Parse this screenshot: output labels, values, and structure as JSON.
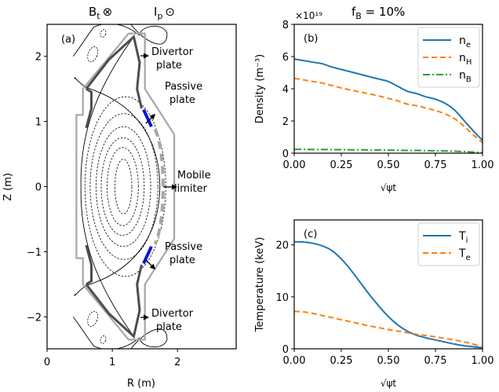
{
  "header": {
    "bt_label": "B",
    "bt_sub": "t",
    "bt_symbol": "⊗",
    "ip_label": "I",
    "ip_sub": "p",
    "ip_symbol": "⊙",
    "fb_label": "f",
    "fb_sub": "B",
    "fb_value": " = 10%"
  },
  "chart_data": [
    {
      "type": "diagram",
      "panel": "(a)",
      "title": "Tokamak poloidal cross-section",
      "xlabel": "R (m)",
      "ylabel": "Z (m)",
      "xlim": [
        0,
        2.9
      ],
      "ylim": [
        -2.49,
        2.49
      ],
      "xticks": [
        0,
        1,
        2
      ],
      "yticks": [
        2,
        1,
        0,
        -1,
        -2
      ],
      "annotations": [
        {
          "text": "Divertor\nplate",
          "lines": [
            "Divertor",
            "plate"
          ],
          "position": "upper"
        },
        {
          "text": "Passive\nplate",
          "lines": [
            "Passive",
            "plate"
          ],
          "position": "upper"
        },
        {
          "text": "Mobile\nlimiter",
          "lines": [
            "Mobile",
            "limiter"
          ],
          "position": "middle"
        },
        {
          "text": "Passive\nplate",
          "lines": [
            "Passive",
            "plate"
          ],
          "position": "lower"
        },
        {
          "text": "Divertor\nplate",
          "lines": [
            "Divertor",
            "plate"
          ],
          "position": "lower"
        }
      ],
      "colors": {
        "wall": "#a6a6a6",
        "divertor": "#4d4d4d",
        "passive": "#0a14d8",
        "limiter": "#a6a6a6",
        "flux": "#000000"
      },
      "wall_outline": [
        [
          1.25,
          2.35
        ],
        [
          1.5,
          2.35
        ],
        [
          1.5,
          1.5
        ],
        [
          1.95,
          0.8
        ],
        [
          1.95,
          -0.8
        ],
        [
          1.5,
          -1.5
        ],
        [
          1.5,
          -2.35
        ],
        [
          1.25,
          -2.35
        ],
        [
          0.55,
          -1.5
        ],
        [
          0.55,
          -1.1
        ],
        [
          0.45,
          -1.1
        ],
        [
          0.45,
          1.1
        ],
        [
          0.55,
          1.1
        ],
        [
          0.55,
          1.5
        ],
        [
          1.25,
          2.35
        ]
      ],
      "divertor_upper": [
        [
          0.6,
          0.9
        ],
        [
          0.68,
          1.2
        ],
        [
          0.68,
          1.45
        ],
        [
          0.6,
          1.5
        ],
        [
          0.95,
          1.95
        ],
        [
          1.33,
          2.3
        ],
        [
          1.42,
          1.9
        ],
        [
          1.38,
          1.5
        ],
        [
          1.45,
          1.2
        ]
      ],
      "divertor_lower": [
        [
          0.6,
          -0.9
        ],
        [
          0.68,
          -1.2
        ],
        [
          0.68,
          -1.45
        ],
        [
          0.6,
          -1.5
        ],
        [
          0.95,
          -1.95
        ],
        [
          1.33,
          -2.3
        ],
        [
          1.42,
          -1.9
        ],
        [
          1.38,
          -1.5
        ],
        [
          1.45,
          -1.2
        ]
      ],
      "passive_upper": [
        [
          1.48,
          1.18
        ],
        [
          1.6,
          0.92
        ]
      ],
      "passive_lower": [
        [
          1.48,
          -1.18
        ],
        [
          1.6,
          -0.92
        ]
      ],
      "limiter_arc": {
        "center_r": 1.22,
        "half_height": 0.82,
        "width_r": 0.52
      },
      "flux_contours": [
        {
          "r0": 1.2,
          "rx": 0.62,
          "zh": 1.38
        },
        {
          "r0": 1.18,
          "rx": 0.52,
          "zh": 1.12
        },
        {
          "r0": 1.17,
          "rx": 0.42,
          "zh": 0.92
        },
        {
          "r0": 1.16,
          "rx": 0.33,
          "zh": 0.75
        },
        {
          "r0": 1.16,
          "rx": 0.24,
          "zh": 0.6
        },
        {
          "r0": 1.17,
          "rx": 0.13,
          "zh": 0.42
        }
      ]
    },
    {
      "type": "line",
      "panel": "(b)",
      "title": "",
      "xlabel": "√ψt",
      "ylabel": "Density (m⁻³)",
      "offset_text": "×10¹⁹",
      "xlim": [
        0,
        1
      ],
      "ylim": [
        0,
        8
      ],
      "xticks": [
        0,
        0.25,
        0.5,
        0.75,
        1.0
      ],
      "xtick_labels": [
        "0.00",
        "0.25",
        "0.50",
        "0.75",
        "1.00"
      ],
      "yticks": [
        0,
        2,
        4,
        6,
        8
      ],
      "ytick_labels": [
        "0",
        "2",
        "4",
        "6",
        "8"
      ],
      "legend": "top-right",
      "x": [
        0,
        0.05,
        0.1,
        0.15,
        0.2,
        0.25,
        0.3,
        0.35,
        0.4,
        0.45,
        0.5,
        0.55,
        0.6,
        0.65,
        0.7,
        0.75,
        0.8,
        0.85,
        0.9,
        0.95,
        1.0
      ],
      "series": [
        {
          "name": "n_e",
          "label_main": "n",
          "label_sub": "e",
          "color": "#1f77b4",
          "style": "solid",
          "values": [
            5.85,
            5.75,
            5.65,
            5.55,
            5.35,
            5.2,
            5.05,
            4.9,
            4.75,
            4.6,
            4.45,
            4.15,
            3.85,
            3.7,
            3.5,
            3.35,
            3.1,
            2.7,
            2.05,
            1.4,
            0.8
          ]
        },
        {
          "name": "n_H",
          "label_main": "n",
          "label_sub": "H",
          "color": "#ff7f0e",
          "style": "dashed",
          "values": [
            4.65,
            4.55,
            4.45,
            4.35,
            4.2,
            4.05,
            3.92,
            3.8,
            3.68,
            3.55,
            3.4,
            3.25,
            3.05,
            2.95,
            2.8,
            2.65,
            2.45,
            2.15,
            1.7,
            1.15,
            0.65
          ]
        },
        {
          "name": "n_B",
          "label_main": "n",
          "label_sub": "B",
          "color": "#2ca02c",
          "style": "dashdot",
          "values": [
            0.24,
            0.24,
            0.23,
            0.23,
            0.22,
            0.22,
            0.21,
            0.21,
            0.2,
            0.2,
            0.19,
            0.18,
            0.17,
            0.17,
            0.16,
            0.15,
            0.14,
            0.12,
            0.1,
            0.07,
            0.04
          ]
        }
      ]
    },
    {
      "type": "line",
      "panel": "(c)",
      "title": "",
      "xlabel": "√ψt",
      "ylabel": "Temperature (keV)",
      "xlim": [
        0,
        1
      ],
      "ylim": [
        0,
        24.8
      ],
      "xticks": [
        0,
        0.25,
        0.5,
        0.75,
        1.0
      ],
      "xtick_labels": [
        "0.00",
        "0.25",
        "0.50",
        "0.75",
        "1.00"
      ],
      "yticks": [
        0,
        10,
        20
      ],
      "ytick_labels": [
        "0",
        "10",
        "20"
      ],
      "legend": "top-right",
      "x": [
        0,
        0.05,
        0.1,
        0.15,
        0.2,
        0.25,
        0.3,
        0.35,
        0.4,
        0.45,
        0.5,
        0.55,
        0.6,
        0.65,
        0.7,
        0.75,
        0.8,
        0.85,
        0.9,
        0.95,
        1.0
      ],
      "series": [
        {
          "name": "T_i",
          "label_main": "T",
          "label_sub": "i",
          "color": "#1f77b4",
          "style": "solid",
          "values": [
            20.6,
            20.55,
            20.3,
            19.8,
            18.9,
            17.3,
            15.2,
            12.8,
            10.4,
            8.2,
            6.2,
            4.6,
            3.4,
            2.6,
            2.1,
            1.7,
            1.3,
            0.9,
            0.6,
            0.4,
            0.2
          ]
        },
        {
          "name": "T_e",
          "label_main": "T",
          "label_sub": "e",
          "color": "#ff7f0e",
          "style": "dashed",
          "values": [
            7.2,
            7.1,
            6.8,
            6.4,
            6.0,
            5.6,
            5.2,
            4.8,
            4.4,
            4.05,
            3.7,
            3.4,
            3.1,
            2.8,
            2.55,
            2.3,
            2.0,
            1.7,
            1.35,
            0.9,
            0.3
          ]
        }
      ]
    }
  ]
}
